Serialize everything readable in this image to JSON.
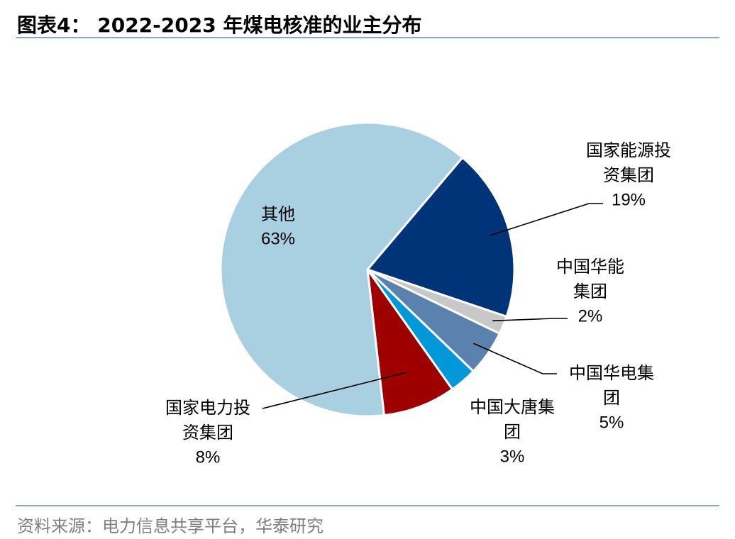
{
  "title": "图表4：  2022-2023 年煤电核准的业主分布",
  "source": "资料来源：电力信息共享平台，华泰研究",
  "chart_data": {
    "type": "pie",
    "slices": [
      {
        "name": "国家能源投资集团",
        "label_lines": [
          "国家能源投",
          "资集团"
        ],
        "value": 19,
        "pct_label": "19%",
        "color": "#003478"
      },
      {
        "name": "中国华能集团",
        "label_lines": [
          "中国华能",
          "集团"
        ],
        "value": 2,
        "pct_label": "2%",
        "color": "#c8c8c8"
      },
      {
        "name": "中国华电集团",
        "label_lines": [
          "中国华电集",
          "团"
        ],
        "value": 5,
        "pct_label": "5%",
        "color": "#5b81ae"
      },
      {
        "name": "中国大唐集团",
        "label_lines": [
          "中国大唐集",
          "团"
        ],
        "value": 3,
        "pct_label": "3%",
        "color": "#0098d8"
      },
      {
        "name": "国家电力投资集团",
        "label_lines": [
          "国家电力投",
          "资集团"
        ],
        "value": 8,
        "pct_label": "8%",
        "color": "#9e0000"
      },
      {
        "name": "其他",
        "label_lines": [
          "其他"
        ],
        "value": 63,
        "pct_label": "63%",
        "color": "#a9d0e0"
      }
    ]
  }
}
